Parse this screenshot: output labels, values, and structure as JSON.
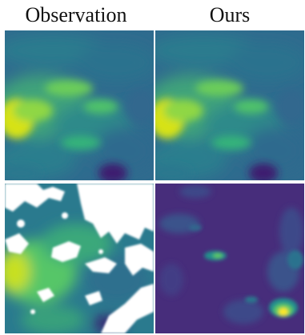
{
  "headers": {
    "left": "Observation",
    "right": "Ours"
  },
  "colors": {
    "colormap": "viridis",
    "low": "#440154",
    "mid_low": "#3b528b",
    "mid": "#21918c",
    "mid_high": "#5ec962",
    "high": "#fde725",
    "missing": "#ffffff"
  },
  "panels": [
    {
      "row": 1,
      "col": 1,
      "content": "observed field"
    },
    {
      "row": 1,
      "col": 2,
      "content": "reconstructed field"
    },
    {
      "row": 2,
      "col": 1,
      "content": "observed field with missing (white) regions"
    },
    {
      "row": 2,
      "col": 2,
      "content": "error map"
    }
  ]
}
